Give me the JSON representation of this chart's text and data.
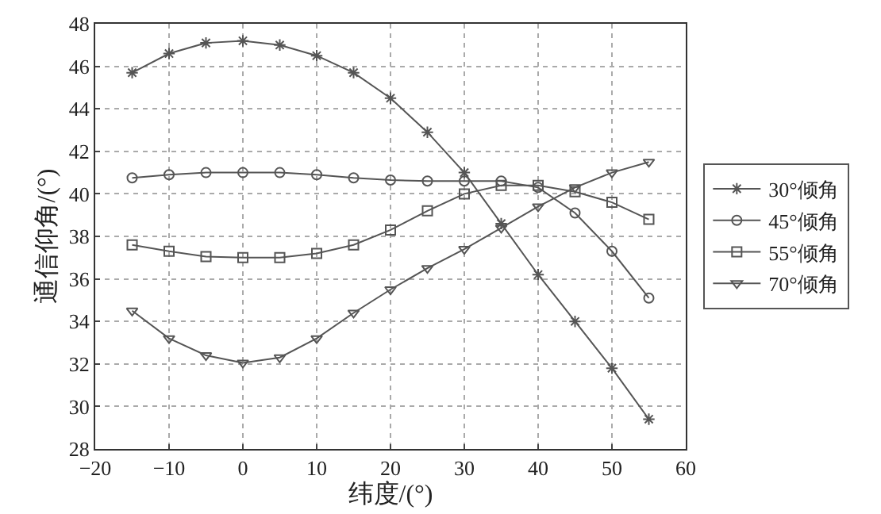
{
  "chart_data": {
    "type": "line",
    "xlabel": "纬度/(°)",
    "ylabel": "通信仰角/(°)",
    "x": [
      -15,
      -10,
      -5,
      0,
      5,
      10,
      15,
      20,
      25,
      30,
      35,
      40,
      45,
      50,
      55
    ],
    "xlim": [
      -20,
      60
    ],
    "xticks": [
      -20,
      -10,
      0,
      10,
      20,
      30,
      40,
      50,
      60
    ],
    "ylim": [
      28,
      48
    ],
    "yticks": [
      28,
      30,
      32,
      34,
      36,
      38,
      40,
      42,
      44,
      46,
      48
    ],
    "grid": true,
    "legend": "right",
    "line_style": "solid",
    "series": [
      {
        "name": "30°倾角",
        "color": "#555555",
        "marker": "cross",
        "values": [
          45.7,
          46.6,
          47.1,
          47.2,
          47.0,
          46.5,
          45.7,
          44.5,
          42.9,
          41.0,
          38.6,
          36.2,
          34.0,
          31.8,
          29.4
        ]
      },
      {
        "name": "45°倾角",
        "color": "#555555",
        "marker": "circle",
        "values": [
          40.75,
          40.9,
          41.0,
          41.0,
          41.0,
          40.9,
          40.75,
          40.65,
          40.6,
          40.6,
          40.6,
          40.3,
          39.1,
          37.3,
          35.1
        ]
      },
      {
        "name": "55°倾角",
        "color": "#555555",
        "marker": "square",
        "values": [
          37.6,
          37.3,
          37.05,
          37.0,
          37.0,
          37.2,
          37.6,
          38.3,
          39.2,
          40.0,
          40.4,
          40.4,
          40.1,
          39.6,
          38.8
        ]
      },
      {
        "name": "70°倾角",
        "color": "#555555",
        "marker": "triangle",
        "values": [
          34.5,
          33.2,
          32.4,
          32.05,
          32.3,
          33.2,
          34.4,
          35.5,
          36.5,
          37.4,
          38.4,
          39.4,
          40.3,
          41.0,
          41.5
        ]
      }
    ]
  }
}
